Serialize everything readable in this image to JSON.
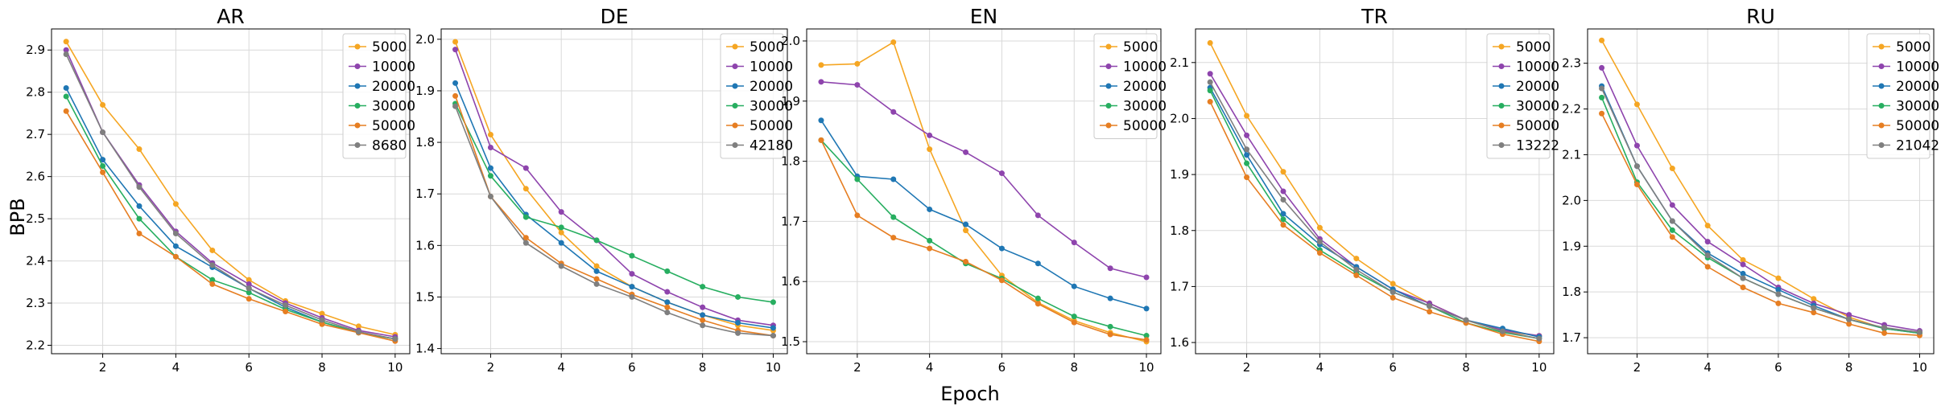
{
  "figure": {
    "ylabel": "BPB",
    "xlabel": "Epoch"
  },
  "chart_data": [
    {
      "type": "line",
      "title": "AR",
      "x": [
        1,
        2,
        3,
        4,
        5,
        6,
        7,
        8,
        9,
        10
      ],
      "xticks": [
        2,
        4,
        6,
        8,
        10
      ],
      "xlim": [
        0.6,
        10.4
      ],
      "yticks": [
        2.2,
        2.3,
        2.4,
        2.5,
        2.6,
        2.7,
        2.8,
        2.9
      ],
      "ylim": [
        2.18,
        2.95
      ],
      "grid": true,
      "legend": "top-right",
      "series": [
        {
          "name": "5000",
          "color": "#f5a623",
          "values": [
            2.92,
            2.77,
            2.665,
            2.535,
            2.425,
            2.355,
            2.305,
            2.275,
            2.245,
            2.225
          ]
        },
        {
          "name": "10000",
          "color": "#8e44ad",
          "values": [
            2.9,
            2.705,
            2.58,
            2.47,
            2.395,
            2.345,
            2.3,
            2.265,
            2.235,
            2.22
          ]
        },
        {
          "name": "20000",
          "color": "#1f77b4",
          "values": [
            2.81,
            2.64,
            2.53,
            2.435,
            2.385,
            2.335,
            2.29,
            2.255,
            2.23,
            2.215
          ]
        },
        {
          "name": "30000",
          "color": "#27ae60",
          "values": [
            2.79,
            2.625,
            2.5,
            2.41,
            2.355,
            2.325,
            2.285,
            2.255,
            2.23,
            2.215
          ]
        },
        {
          "name": "50000",
          "color": "#e67e22",
          "values": [
            2.755,
            2.61,
            2.465,
            2.41,
            2.345,
            2.31,
            2.28,
            2.25,
            2.23,
            2.21
          ]
        },
        {
          "name": "8680",
          "color": "#7f7f7f",
          "values": [
            2.89,
            2.705,
            2.575,
            2.465,
            2.39,
            2.335,
            2.295,
            2.26,
            2.232,
            2.215
          ]
        }
      ]
    },
    {
      "type": "line",
      "title": "DE",
      "x": [
        1,
        2,
        3,
        4,
        5,
        6,
        7,
        8,
        9,
        10
      ],
      "xticks": [
        2,
        4,
        6,
        8,
        10
      ],
      "xlim": [
        0.6,
        10.4
      ],
      "yticks": [
        1.4,
        1.5,
        1.6,
        1.7,
        1.8,
        1.9,
        2.0
      ],
      "ylim": [
        1.39,
        2.02
      ],
      "grid": true,
      "legend": "top-right",
      "series": [
        {
          "name": "5000",
          "color": "#f5a623",
          "values": [
            1.995,
            1.815,
            1.71,
            1.625,
            1.56,
            1.52,
            1.49,
            1.465,
            1.445,
            1.435
          ]
        },
        {
          "name": "10000",
          "color": "#8e44ad",
          "values": [
            1.98,
            1.79,
            1.75,
            1.665,
            1.61,
            1.545,
            1.51,
            1.48,
            1.455,
            1.445
          ]
        },
        {
          "name": "20000",
          "color": "#1f77b4",
          "values": [
            1.915,
            1.75,
            1.66,
            1.605,
            1.55,
            1.52,
            1.49,
            1.465,
            1.45,
            1.44
          ]
        },
        {
          "name": "30000",
          "color": "#27ae60",
          "values": [
            1.875,
            1.735,
            1.655,
            1.635,
            1.61,
            1.58,
            1.55,
            1.52,
            1.5,
            1.49
          ]
        },
        {
          "name": "50000",
          "color": "#e67e22",
          "values": [
            1.89,
            1.695,
            1.615,
            1.565,
            1.535,
            1.505,
            1.48,
            1.455,
            1.435,
            1.425
          ]
        },
        {
          "name": "42180",
          "color": "#7f7f7f",
          "values": [
            1.87,
            1.695,
            1.605,
            1.56,
            1.525,
            1.5,
            1.47,
            1.445,
            1.43,
            1.425
          ]
        }
      ]
    },
    {
      "type": "line",
      "title": "EN",
      "x": [
        1,
        2,
        3,
        4,
        5,
        6,
        7,
        8,
        9,
        10
      ],
      "xticks": [
        2,
        4,
        6,
        8,
        10
      ],
      "xlim": [
        0.6,
        10.4
      ],
      "yticks": [
        1.5,
        1.6,
        1.7,
        1.8,
        1.9,
        2.0
      ],
      "ylim": [
        1.48,
        2.02
      ],
      "grid": true,
      "legend": "top-right",
      "series": [
        {
          "name": "5000",
          "color": "#f5a623",
          "values": [
            1.96,
            1.962,
            1.998,
            1.82,
            1.685,
            1.61,
            1.565,
            1.535,
            1.515,
            1.5
          ]
        },
        {
          "name": "10000",
          "color": "#8e44ad",
          "values": [
            1.932,
            1.927,
            1.882,
            1.843,
            1.815,
            1.78,
            1.71,
            1.665,
            1.622,
            1.607
          ]
        },
        {
          "name": "20000",
          "color": "#1f77b4",
          "values": [
            1.868,
            1.775,
            1.77,
            1.72,
            1.695,
            1.655,
            1.63,
            1.592,
            1.572,
            1.555
          ]
        },
        {
          "name": "30000",
          "color": "#27ae60",
          "values": [
            1.835,
            1.77,
            1.707,
            1.668,
            1.63,
            1.605,
            1.572,
            1.542,
            1.525,
            1.51
          ]
        },
        {
          "name": "50000",
          "color": "#e67e22",
          "values": [
            1.835,
            1.71,
            1.673,
            1.655,
            1.633,
            1.602,
            1.563,
            1.532,
            1.512,
            1.503
          ]
        }
      ]
    },
    {
      "type": "line",
      "title": "TR",
      "x": [
        1,
        2,
        3,
        4,
        5,
        6,
        7,
        8,
        9,
        10
      ],
      "xticks": [
        2,
        4,
        6,
        8,
        10
      ],
      "xlim": [
        0.6,
        10.4
      ],
      "yticks": [
        1.6,
        1.7,
        1.8,
        1.9,
        2.0,
        2.1
      ],
      "ylim": [
        1.58,
        2.16
      ],
      "grid": true,
      "legend": "top-right",
      "series": [
        {
          "name": "5000",
          "color": "#f5a623",
          "values": [
            2.135,
            2.005,
            1.905,
            1.805,
            1.75,
            1.705,
            1.67,
            1.64,
            1.62,
            1.612
          ]
        },
        {
          "name": "10000",
          "color": "#8e44ad",
          "values": [
            2.08,
            1.97,
            1.87,
            1.785,
            1.735,
            1.695,
            1.67,
            1.64,
            1.622,
            1.612
          ]
        },
        {
          "name": "20000",
          "color": "#1f77b4",
          "values": [
            2.055,
            1.935,
            1.83,
            1.775,
            1.735,
            1.695,
            1.665,
            1.64,
            1.625,
            1.61
          ]
        },
        {
          "name": "30000",
          "color": "#27ae60",
          "values": [
            2.05,
            1.92,
            1.82,
            1.765,
            1.725,
            1.69,
            1.665,
            1.635,
            1.618,
            1.607
          ]
        },
        {
          "name": "50000",
          "color": "#e67e22",
          "values": [
            2.03,
            1.895,
            1.81,
            1.76,
            1.72,
            1.68,
            1.655,
            1.635,
            1.615,
            1.602
          ]
        },
        {
          "name": "13222",
          "color": "#7f7f7f",
          "values": [
            2.065,
            1.945,
            1.855,
            1.78,
            1.73,
            1.69,
            1.665,
            1.64,
            1.62,
            1.607
          ]
        }
      ]
    },
    {
      "type": "line",
      "title": "RU",
      "x": [
        1,
        2,
        3,
        4,
        5,
        6,
        7,
        8,
        9,
        10
      ],
      "xticks": [
        2,
        4,
        6,
        8,
        10
      ],
      "xlim": [
        0.6,
        10.4
      ],
      "yticks": [
        1.7,
        1.8,
        1.9,
        2.0,
        2.1,
        2.2,
        2.3
      ],
      "ylim": [
        1.665,
        2.375
      ],
      "grid": true,
      "legend": "top-right",
      "series": [
        {
          "name": "5000",
          "color": "#f5a623",
          "values": [
            2.35,
            2.21,
            2.07,
            1.945,
            1.87,
            1.83,
            1.785,
            1.745,
            1.72,
            1.712
          ]
        },
        {
          "name": "10000",
          "color": "#8e44ad",
          "values": [
            2.29,
            2.12,
            1.99,
            1.91,
            1.86,
            1.81,
            1.775,
            1.75,
            1.728,
            1.715
          ]
        },
        {
          "name": "20000",
          "color": "#1f77b4",
          "values": [
            2.25,
            2.075,
            1.955,
            1.885,
            1.84,
            1.805,
            1.77,
            1.74,
            1.72,
            1.71
          ]
        },
        {
          "name": "30000",
          "color": "#27ae60",
          "values": [
            2.225,
            2.04,
            1.935,
            1.875,
            1.83,
            1.795,
            1.765,
            1.74,
            1.72,
            1.71
          ]
        },
        {
          "name": "50000",
          "color": "#e67e22",
          "values": [
            2.19,
            2.035,
            1.92,
            1.855,
            1.81,
            1.775,
            1.755,
            1.73,
            1.71,
            1.705
          ]
        },
        {
          "name": "21042",
          "color": "#7f7f7f",
          "values": [
            2.245,
            2.075,
            1.955,
            1.88,
            1.83,
            1.795,
            1.765,
            1.74,
            1.722,
            1.712
          ]
        }
      ]
    }
  ]
}
